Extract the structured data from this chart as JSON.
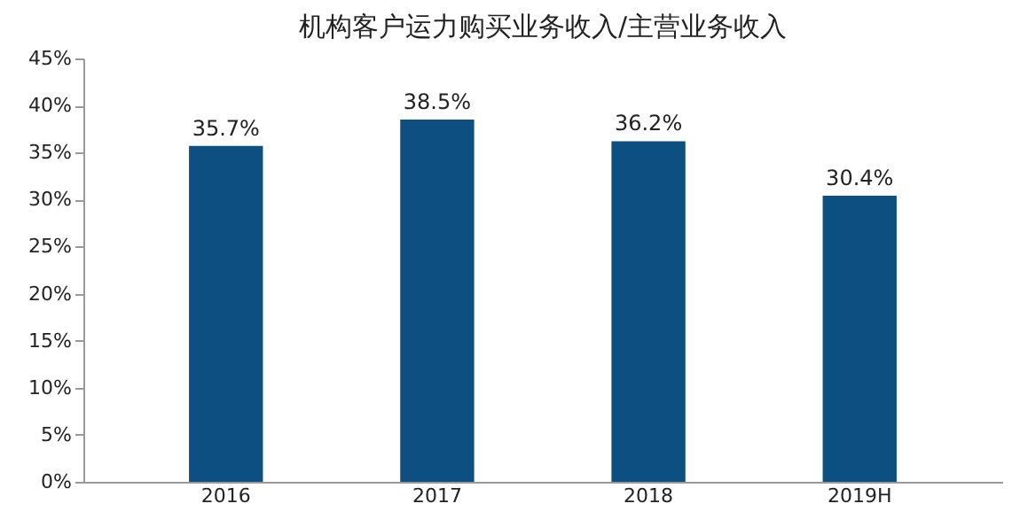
{
  "chart_data": {
    "type": "bar",
    "title": "机构客户运力购买业务收入/主营业务收入",
    "categories": [
      "2016",
      "2017",
      "2018",
      "2019H"
    ],
    "values": [
      35.7,
      38.5,
      36.2,
      30.4
    ],
    "value_labels": [
      "35.7%",
      "38.5%",
      "36.2%",
      "30.4%"
    ],
    "color": "#0d4f80",
    "ylim": [
      0,
      45
    ],
    "yticks": [
      {
        "value": 0,
        "label": "0%"
      },
      {
        "value": 5,
        "label": "5%"
      },
      {
        "value": 10,
        "label": "10%"
      },
      {
        "value": 15,
        "label": "15%"
      },
      {
        "value": 20,
        "label": "20%"
      },
      {
        "value": 25,
        "label": "25%"
      },
      {
        "value": 30,
        "label": "30%"
      },
      {
        "value": 35,
        "label": "35%"
      },
      {
        "value": 40,
        "label": "40%"
      },
      {
        "value": 45,
        "label": "45%"
      }
    ],
    "grid": false
  }
}
